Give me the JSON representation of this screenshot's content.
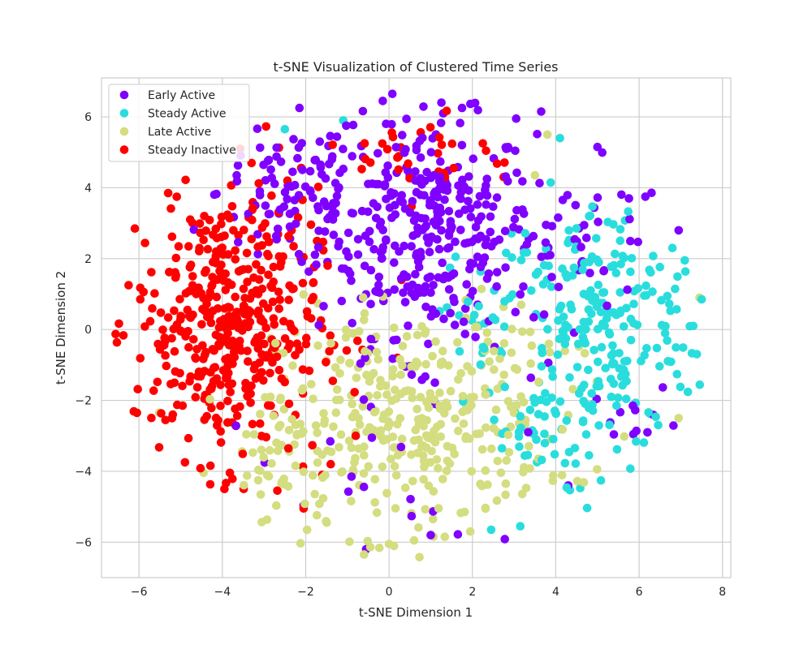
{
  "chart_data": {
    "type": "scatter",
    "title": "t-SNE Visualization of Clustered Time Series",
    "xlabel": "t-SNE Dimension 1",
    "ylabel": "t-SNE Dimension 2",
    "xlim": [
      -6.9,
      8.2
    ],
    "ylim": [
      -7.0,
      7.1
    ],
    "xticks": [
      -6,
      -4,
      -2,
      0,
      2,
      4,
      6,
      8
    ],
    "yticks": [
      -6,
      -4,
      -2,
      0,
      2,
      4,
      6
    ],
    "xtick_labels": [
      "−6",
      "−4",
      "−2",
      "0",
      "2",
      "4",
      "6",
      "8"
    ],
    "ytick_labels": [
      "−6",
      "−4",
      "−2",
      "0",
      "2",
      "4",
      "6"
    ],
    "grid": true,
    "legend_position": "top-left",
    "series": [
      {
        "name": "Early Active",
        "color": "#7f00ff",
        "clusters": [
          {
            "cx": 0.9,
            "cy": 2.9,
            "sx": 1.3,
            "sy": 1.5,
            "n": 330
          },
          {
            "cx": -2.3,
            "cy": 3.9,
            "sx": 0.9,
            "sy": 1.2,
            "n": 90
          },
          {
            "cx": 4.8,
            "cy": 2.3,
            "sx": 1.0,
            "sy": 1.1,
            "n": 40
          },
          {
            "cx": 5.9,
            "cy": -2.4,
            "sx": 0.6,
            "sy": 0.4,
            "n": 10
          },
          {
            "cx": 0.8,
            "cy": -2.3,
            "sx": 2.0,
            "sy": 2.0,
            "n": 30
          }
        ],
        "fixed": [
          {
            "x": -0.15,
            "y": 6.45
          },
          {
            "x": -2.15,
            "y": 6.25
          },
          {
            "x": 1.75,
            "y": 6.25
          },
          {
            "x": 1.3,
            "y": 6.1
          },
          {
            "x": 3.65,
            "y": 6.15
          },
          {
            "x": 3.05,
            "y": 5.95
          },
          {
            "x": 5.0,
            "y": 5.15
          },
          {
            "x": 6.15,
            "y": 3.75
          },
          {
            "x": 6.95,
            "y": 2.8
          },
          {
            "x": 5.85,
            "y": -2.15
          },
          {
            "x": 6.2,
            "y": -2.9
          },
          {
            "x": 1.0,
            "y": -5.8
          },
          {
            "x": -0.55,
            "y": -6.2
          },
          {
            "x": -0.9,
            "y": -4.15
          },
          {
            "x": 4.3,
            "y": -4.4
          },
          {
            "x": 1.1,
            "y": -1.5
          }
        ]
      },
      {
        "name": "Steady Active",
        "color": "#2adddd",
        "clusters": [
          {
            "cx": 5.0,
            "cy": 0.1,
            "sx": 1.3,
            "sy": 1.8,
            "n": 230
          },
          {
            "cx": 3.4,
            "cy": -3.0,
            "sx": 0.8,
            "sy": 0.8,
            "n": 40
          },
          {
            "cx": 2.3,
            "cy": 0.4,
            "sx": 0.5,
            "sy": 0.7,
            "n": 20
          }
        ],
        "fixed": [
          {
            "x": -1.1,
            "y": 5.9
          },
          {
            "x": -2.5,
            "y": 5.65
          },
          {
            "x": 2.45,
            "y": -5.65
          },
          {
            "x": 3.15,
            "y": -5.55
          },
          {
            "x": 7.5,
            "y": 0.85
          },
          {
            "x": 7.3,
            "y": 0.1
          },
          {
            "x": 6.8,
            "y": 2.3
          },
          {
            "x": 4.1,
            "y": 5.4
          }
        ]
      },
      {
        "name": "Late Active",
        "color": "#d4dd80",
        "clusters": [
          {
            "cx": 0.5,
            "cy": -2.6,
            "sx": 1.6,
            "sy": 1.6,
            "n": 300
          },
          {
            "cx": -2.3,
            "cy": -3.8,
            "sx": 0.9,
            "sy": 1.0,
            "n": 60
          },
          {
            "cx": 3.2,
            "cy": -2.0,
            "sx": 0.9,
            "sy": 1.4,
            "n": 40
          }
        ],
        "fixed": [
          {
            "x": 3.8,
            "y": 5.5
          },
          {
            "x": 3.5,
            "y": 4.35
          },
          {
            "x": 7.45,
            "y": 0.9
          },
          {
            "x": 6.95,
            "y": -2.5
          },
          {
            "x": -0.6,
            "y": -6.35
          },
          {
            "x": 0.0,
            "y": -6.05
          },
          {
            "x": 1.95,
            "y": -5.7
          },
          {
            "x": 0.6,
            "y": -5.95
          }
        ]
      },
      {
        "name": "Steady Inactive",
        "color": "#ff0000",
        "clusters": [
          {
            "cx": -3.9,
            "cy": 0.2,
            "sx": 1.1,
            "sy": 1.9,
            "n": 440
          },
          {
            "cx": 1.0,
            "cy": 4.9,
            "sx": 0.9,
            "sy": 0.6,
            "n": 30
          }
        ],
        "fixed": [
          {
            "x": -6.25,
            "y": 1.25
          },
          {
            "x": -6.1,
            "y": 2.85
          },
          {
            "x": -5.3,
            "y": 3.85
          },
          {
            "x": -6.05,
            "y": -2.35
          },
          {
            "x": -3.95,
            "y": -4.5
          },
          {
            "x": -1.6,
            "y": -4.1
          },
          {
            "x": -1.4,
            "y": -3.8
          },
          {
            "x": -2.05,
            "y": -5.05
          },
          {
            "x": -0.8,
            "y": -3.0
          },
          {
            "x": -1.35,
            "y": -1.45
          },
          {
            "x": 0.2,
            "y": -0.8
          },
          {
            "x": 0.3,
            "y": 1.4
          },
          {
            "x": -3.3,
            "y": 4.7
          },
          {
            "x": 2.25,
            "y": 5.25
          },
          {
            "x": 2.75,
            "y": 4.3
          },
          {
            "x": 0.2,
            "y": 4.85
          }
        ]
      }
    ]
  }
}
